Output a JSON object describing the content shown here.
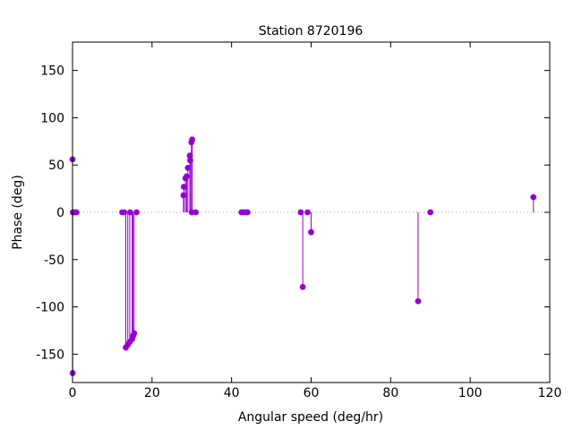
{
  "chart_data": {
    "type": "scatter",
    "style": "impulses-with-points",
    "title": "Station 8720196",
    "xlabel": "Angular speed (deg/hr)",
    "ylabel": "Phase (deg)",
    "xlim": [
      0,
      120
    ],
    "ylim": [
      -180,
      180
    ],
    "xticks": [
      0,
      20,
      40,
      60,
      80,
      100,
      120
    ],
    "yticks": [
      -150,
      -100,
      -50,
      0,
      50,
      100,
      150
    ],
    "zero_line": "dotted",
    "grid": false,
    "legend": "none",
    "color": "#9400d3",
    "points": [
      {
        "x": 0.0,
        "y": 56
      },
      {
        "x": 0.04,
        "y": -170
      },
      {
        "x": 0.08,
        "y": 0
      },
      {
        "x": 0.5,
        "y": 0
      },
      {
        "x": 1.0,
        "y": 0
      },
      {
        "x": 12.5,
        "y": 0
      },
      {
        "x": 13.0,
        "y": 0
      },
      {
        "x": 13.4,
        "y": -143
      },
      {
        "x": 13.9,
        "y": -140
      },
      {
        "x": 14.4,
        "y": -137
      },
      {
        "x": 15.0,
        "y": -134
      },
      {
        "x": 15.2,
        "y": -131
      },
      {
        "x": 15.5,
        "y": -128
      },
      {
        "x": 14.5,
        "y": 0
      },
      {
        "x": 16.1,
        "y": 0
      },
      {
        "x": 27.9,
        "y": 18
      },
      {
        "x": 28.0,
        "y": 27
      },
      {
        "x": 28.4,
        "y": 36
      },
      {
        "x": 28.7,
        "y": 38
      },
      {
        "x": 29.0,
        "y": 47
      },
      {
        "x": 29.5,
        "y": 60
      },
      {
        "x": 29.6,
        "y": 55
      },
      {
        "x": 29.9,
        "y": 74
      },
      {
        "x": 30.1,
        "y": 77
      },
      {
        "x": 30.0,
        "y": 0
      },
      {
        "x": 31.0,
        "y": 0
      },
      {
        "x": 42.5,
        "y": 0
      },
      {
        "x": 43.0,
        "y": 0
      },
      {
        "x": 43.5,
        "y": 0
      },
      {
        "x": 44.0,
        "y": 0
      },
      {
        "x": 57.4,
        "y": 0
      },
      {
        "x": 57.9,
        "y": -79
      },
      {
        "x": 59.1,
        "y": 0
      },
      {
        "x": 60.0,
        "y": -21
      },
      {
        "x": 86.9,
        "y": -94
      },
      {
        "x": 90.0,
        "y": 0
      },
      {
        "x": 115.9,
        "y": 16
      }
    ]
  }
}
